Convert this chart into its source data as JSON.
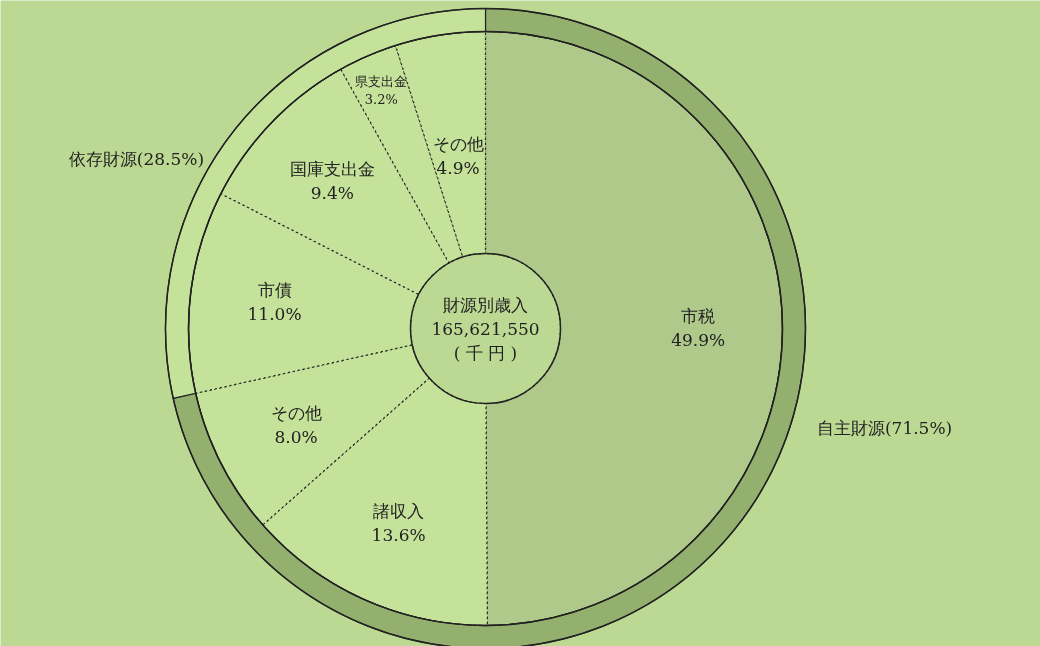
{
  "chart_data": {
    "type": "donut",
    "title": "財源別歳入\n165,621,550\n( 千 円 )",
    "categories": [
      "市税",
      "諸収入",
      "その他",
      "市債",
      "国庫支出金",
      "県支出金",
      "その他"
    ],
    "series": [
      {
        "values": [
          49.9,
          13.6,
          8.0,
          11.0,
          9.4,
          3.2,
          4.9
        ],
        "value_labels": [
          "49.9%",
          "13.6%",
          "8.0%",
          "11.0%",
          "9.4%",
          "3.2%",
          "4.9%"
        ],
        "colors": [
          "#aec98a",
          "#c5e29a",
          "#c5e29a",
          "#c5e29a",
          "#c5e29a",
          "#c5e29a",
          "#c5e29a"
        ],
        "line_style": "dotted"
      },
      {
        "values": [
          71.5,
          null,
          null,
          28.5,
          null,
          null,
          null
        ],
        "value_labels": [
          "自主財源(71.5%)",
          null,
          null,
          "依存財源(28.5%)",
          null,
          null,
          null
        ],
        "colors": [
          "#93b06f",
          null,
          null,
          "#c5e29a",
          null,
          null,
          null
        ],
        "line_style": "solid"
      }
    ]
  }
}
